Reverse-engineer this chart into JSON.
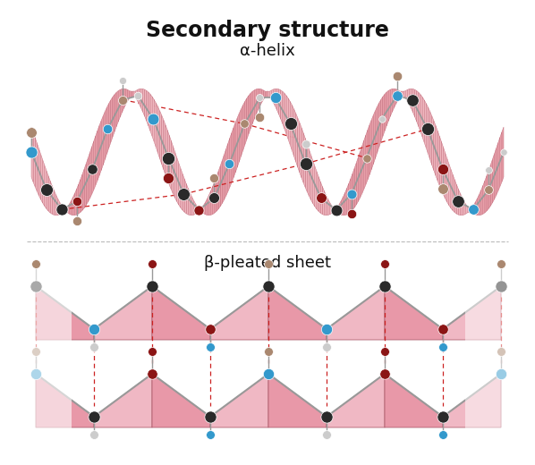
{
  "title": "Secondary structure",
  "title_fontsize": 17,
  "title_fontweight": "bold",
  "helix_label": "α-helix",
  "sheet_label": "β-pleated sheet",
  "label_fontsize": 13,
  "bg_color": "#ffffff",
  "helix_ribbon_light": "#f0b8c0",
  "helix_ribbon_mid": "#e8a0aa",
  "helix_ribbon_dark": "#d07888",
  "helix_ribbon_edge": "#c06878",
  "sheet_light": "#f0b8c4",
  "sheet_mid": "#e898a8",
  "sheet_dark": "#cc7888",
  "sheet_edge": "#b06070",
  "atom_C": "#2a2a2a",
  "atom_N": "#3399cc",
  "atom_O": "#8b1515",
  "atom_H": "#cccccc",
  "atom_R": "#aa8870",
  "bond_color": "#999999",
  "hbond_color": "#cc2222",
  "divider_color": "#bbbbbb"
}
